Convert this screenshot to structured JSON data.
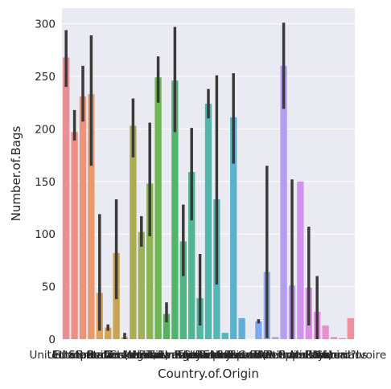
{
  "chart_data": {
    "type": "bar",
    "xlabel": "Country.of.Origin",
    "ylabel": "Number.of.Bags",
    "ylim": [
      0,
      315
    ],
    "yticks": [
      0,
      50,
      100,
      150,
      200,
      250,
      300
    ],
    "grid": true,
    "background": "#eaeaf2",
    "errorbar_color": "#3a3a3a",
    "categories": [
      "United States",
      "Ethiopia",
      "Guatemala",
      "Brazil",
      "Peru",
      "United States (Hawaii)",
      "Indonesia",
      "China",
      "Costa Rica",
      "Mexico",
      "Uganda",
      "Honduras",
      "Taiwan",
      "Nicaragua",
      "Tanzania, United Republic Of",
      "Kenya",
      "Thailand",
      "Colombia",
      "Panama",
      "Papua New Guinea",
      "El Salvador",
      "Japan",
      "Ecuador",
      "United States (Puerto Rico)",
      "Haiti",
      "Burundi",
      "Vietnam",
      "Philippines",
      "Rwanda",
      "Malawi",
      "Laos",
      "Zambia",
      "Myanmar",
      "Mauritius",
      "Cote d?Ivoire"
    ],
    "values": [
      268,
      197,
      231,
      233,
      44,
      11,
      82,
      2,
      203,
      102,
      148,
      249,
      24,
      246,
      93,
      159,
      39,
      224,
      133,
      6,
      211,
      20,
      null,
      17,
      64,
      2,
      260,
      51,
      150,
      49,
      26,
      13,
      2,
      1,
      20
    ],
    "error_low": [
      240,
      189,
      207,
      165,
      8,
      8,
      38,
      0,
      173,
      88,
      98,
      225,
      16,
      197,
      60,
      113,
      13,
      210,
      52,
      null,
      167,
      null,
      null,
      15,
      1,
      null,
      219,
      0,
      null,
      13,
      0,
      null,
      null,
      null,
      null
    ],
    "error_high": [
      294,
      218,
      260,
      289,
      119,
      14,
      133,
      6,
      229,
      117,
      206,
      269,
      35,
      297,
      128,
      201,
      81,
      238,
      251,
      null,
      253,
      null,
      null,
      19,
      165,
      null,
      301,
      152,
      null,
      107,
      60,
      null,
      4,
      null,
      null
    ],
    "colors": [
      "#e98e92",
      "#ec8f86",
      "#ec937b",
      "#e99a6d",
      "#e0a05c",
      "#d3a557",
      "#c6a554",
      "#b9a952",
      "#abac52",
      "#9eb15a",
      "#8cb454",
      "#6fb553",
      "#56b35d",
      "#4eb46e",
      "#4fb584",
      "#52b692",
      "#53b7a0",
      "#54b6aa",
      "#55b6b5",
      "#56b5c1",
      "#5ab2cd",
      "#63aed9",
      "#6eaee5",
      "#7caaf0",
      "#90a7f2",
      "#a5a2f0",
      "#b49ef2",
      "#c39af2",
      "#d194ee",
      "#dc8ee6",
      "#e38ddc",
      "#e890cf",
      "#ea90c1",
      "#ec8fb1",
      "#ee8fa2"
    ]
  }
}
